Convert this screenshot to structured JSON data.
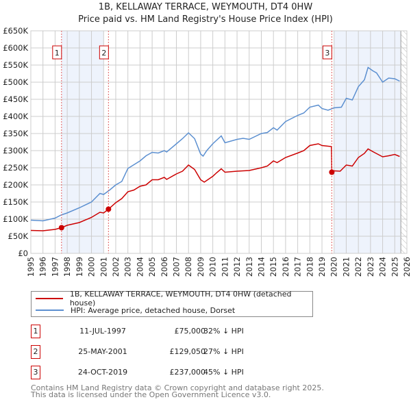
{
  "title_line1": "1B, KELLAWAY TERRACE, WEYMOUTH, DT4 0HW",
  "title_line2": "Price paid vs. HM Land Registry's House Price Index (HPI)",
  "legend": {
    "property": "1B, KELLAWAY TERRACE, WEYMOUTH, DT4 0HW (detached house)",
    "hpi": "HPI: Average price, detached house, Dorset"
  },
  "colors": {
    "property": "#cc0000",
    "hpi": "#5b8fd0",
    "shade": "#eef3fc",
    "grid": "#cccccc"
  },
  "transactions": [
    {
      "num": "1",
      "date": "11-JUL-1997",
      "price": "£75,000",
      "hpi": "32% ↓ HPI"
    },
    {
      "num": "2",
      "date": "25-MAY-2001",
      "price": "£129,050",
      "hpi": "27% ↓ HPI"
    },
    {
      "num": "3",
      "date": "24-OCT-2019",
      "price": "£237,000",
      "hpi": "45% ↓ HPI"
    }
  ],
  "footer_line1": "Contains HM Land Registry data © Crown copyright and database right 2025.",
  "footer_line2": "This data is licensed under the Open Government Licence v3.0.",
  "chart_data": {
    "type": "line",
    "xlim": [
      1995,
      2026
    ],
    "ylim": [
      0,
      650000
    ],
    "yticks": [
      0,
      50000,
      100000,
      150000,
      200000,
      250000,
      300000,
      350000,
      400000,
      450000,
      500000,
      550000,
      600000,
      650000
    ],
    "ytick_labels": [
      "£0",
      "£50K",
      "£100K",
      "£150K",
      "£200K",
      "£250K",
      "£300K",
      "£350K",
      "£400K",
      "£450K",
      "£500K",
      "£550K",
      "£600K",
      "£650K"
    ],
    "xtick_labels": [
      "1995",
      "1996",
      "1997",
      "1998",
      "1999",
      "2000",
      "2001",
      "2002",
      "2003",
      "2004",
      "2005",
      "2006",
      "2007",
      "2008",
      "2009",
      "2010",
      "2011",
      "2012",
      "2013",
      "2014",
      "2015",
      "2016",
      "2017",
      "2018",
      "2019",
      "2020",
      "2021",
      "2022",
      "2023",
      "2024",
      "2025",
      "2026"
    ],
    "grid": true,
    "legend_placement": "below",
    "shaded_ranges": [
      [
        1997.53,
        2001.0
      ],
      [
        2020.0,
        2025.5
      ]
    ],
    "hatched_after": 2025.5,
    "sales": [
      {
        "label": "1",
        "x": 1997.53,
        "y": 75000
      },
      {
        "label": "2",
        "x": 2001.4,
        "y": 129050
      },
      {
        "label": "3",
        "x": 2019.81,
        "y": 237000
      }
    ],
    "series": [
      {
        "name": "1B, KELLAWAY TERRACE, WEYMOUTH, DT4 0HW (detached house)",
        "color": "#cc0000",
        "x": [
          1995,
          1996,
          1997,
          1997.53,
          1998,
          1999,
          2000,
          2000.7,
          2001,
          2001.4,
          2002,
          2002.5,
          2003,
          2003.5,
          2004,
          2004.5,
          2005,
          2005.5,
          2006,
          2006.2,
          2007,
          2007.5,
          2008,
          2008.5,
          2009,
          2009.3,
          2010,
          2010.3,
          2010.7,
          2011,
          2012,
          2013,
          2014,
          2014.5,
          2015,
          2015.3,
          2016,
          2017,
          2017.5,
          2018,
          2018.7,
          2019,
          2019.78,
          2019.81,
          2020,
          2020.5,
          2021,
          2021.5,
          2022,
          2022.5,
          2022.8,
          2023.2,
          2024,
          2024.5,
          2025,
          2025.4
        ],
        "y": [
          67000,
          66000,
          70000,
          75000,
          82000,
          90000,
          105000,
          120000,
          118000,
          129050,
          148000,
          160000,
          180000,
          185000,
          196000,
          200000,
          215000,
          215000,
          222000,
          216000,
          232000,
          240000,
          258000,
          245000,
          215000,
          208000,
          225000,
          235000,
          247000,
          237000,
          240000,
          242000,
          250000,
          255000,
          270000,
          265000,
          280000,
          293000,
          300000,
          315000,
          320000,
          315000,
          312000,
          237000,
          241000,
          240000,
          258000,
          255000,
          280000,
          292000,
          305000,
          297000,
          282000,
          285000,
          289000,
          283000
        ]
      },
      {
        "name": "HPI: Average price, detached house, Dorset",
        "color": "#5b8fd0",
        "x": [
          1995,
          1996,
          1997,
          1997.5,
          1998,
          1999,
          2000,
          2000.7,
          2001,
          2001.5,
          2002,
          2002.5,
          2003,
          2004,
          2004.5,
          2005,
          2005.5,
          2006,
          2006.2,
          2007,
          2007.5,
          2008,
          2008.5,
          2009,
          2009.2,
          2009.5,
          2010,
          2010.7,
          2011,
          2012,
          2012.5,
          2013,
          2014,
          2014.5,
          2015,
          2015.3,
          2016,
          2017,
          2017.5,
          2018,
          2018.7,
          2019,
          2019.5,
          2020,
          2020.6,
          2021,
          2021.5,
          2022,
          2022.5,
          2022.8,
          2023.2,
          2023.5,
          2024,
          2024.5,
          2025,
          2025.4
        ],
        "y": [
          97000,
          95000,
          103000,
          112000,
          118000,
          133000,
          150000,
          175000,
          172000,
          185000,
          200000,
          210000,
          248000,
          270000,
          285000,
          295000,
          293000,
          300000,
          296000,
          320000,
          335000,
          352000,
          335000,
          290000,
          284000,
          300000,
          320000,
          343000,
          323000,
          333000,
          336000,
          333000,
          350000,
          353000,
          367000,
          360000,
          385000,
          403000,
          410000,
          427000,
          433000,
          423000,
          418000,
          425000,
          427000,
          453000,
          448000,
          487000,
          507000,
          543000,
          533000,
          527000,
          500000,
          512000,
          510000,
          503000
        ]
      }
    ]
  }
}
